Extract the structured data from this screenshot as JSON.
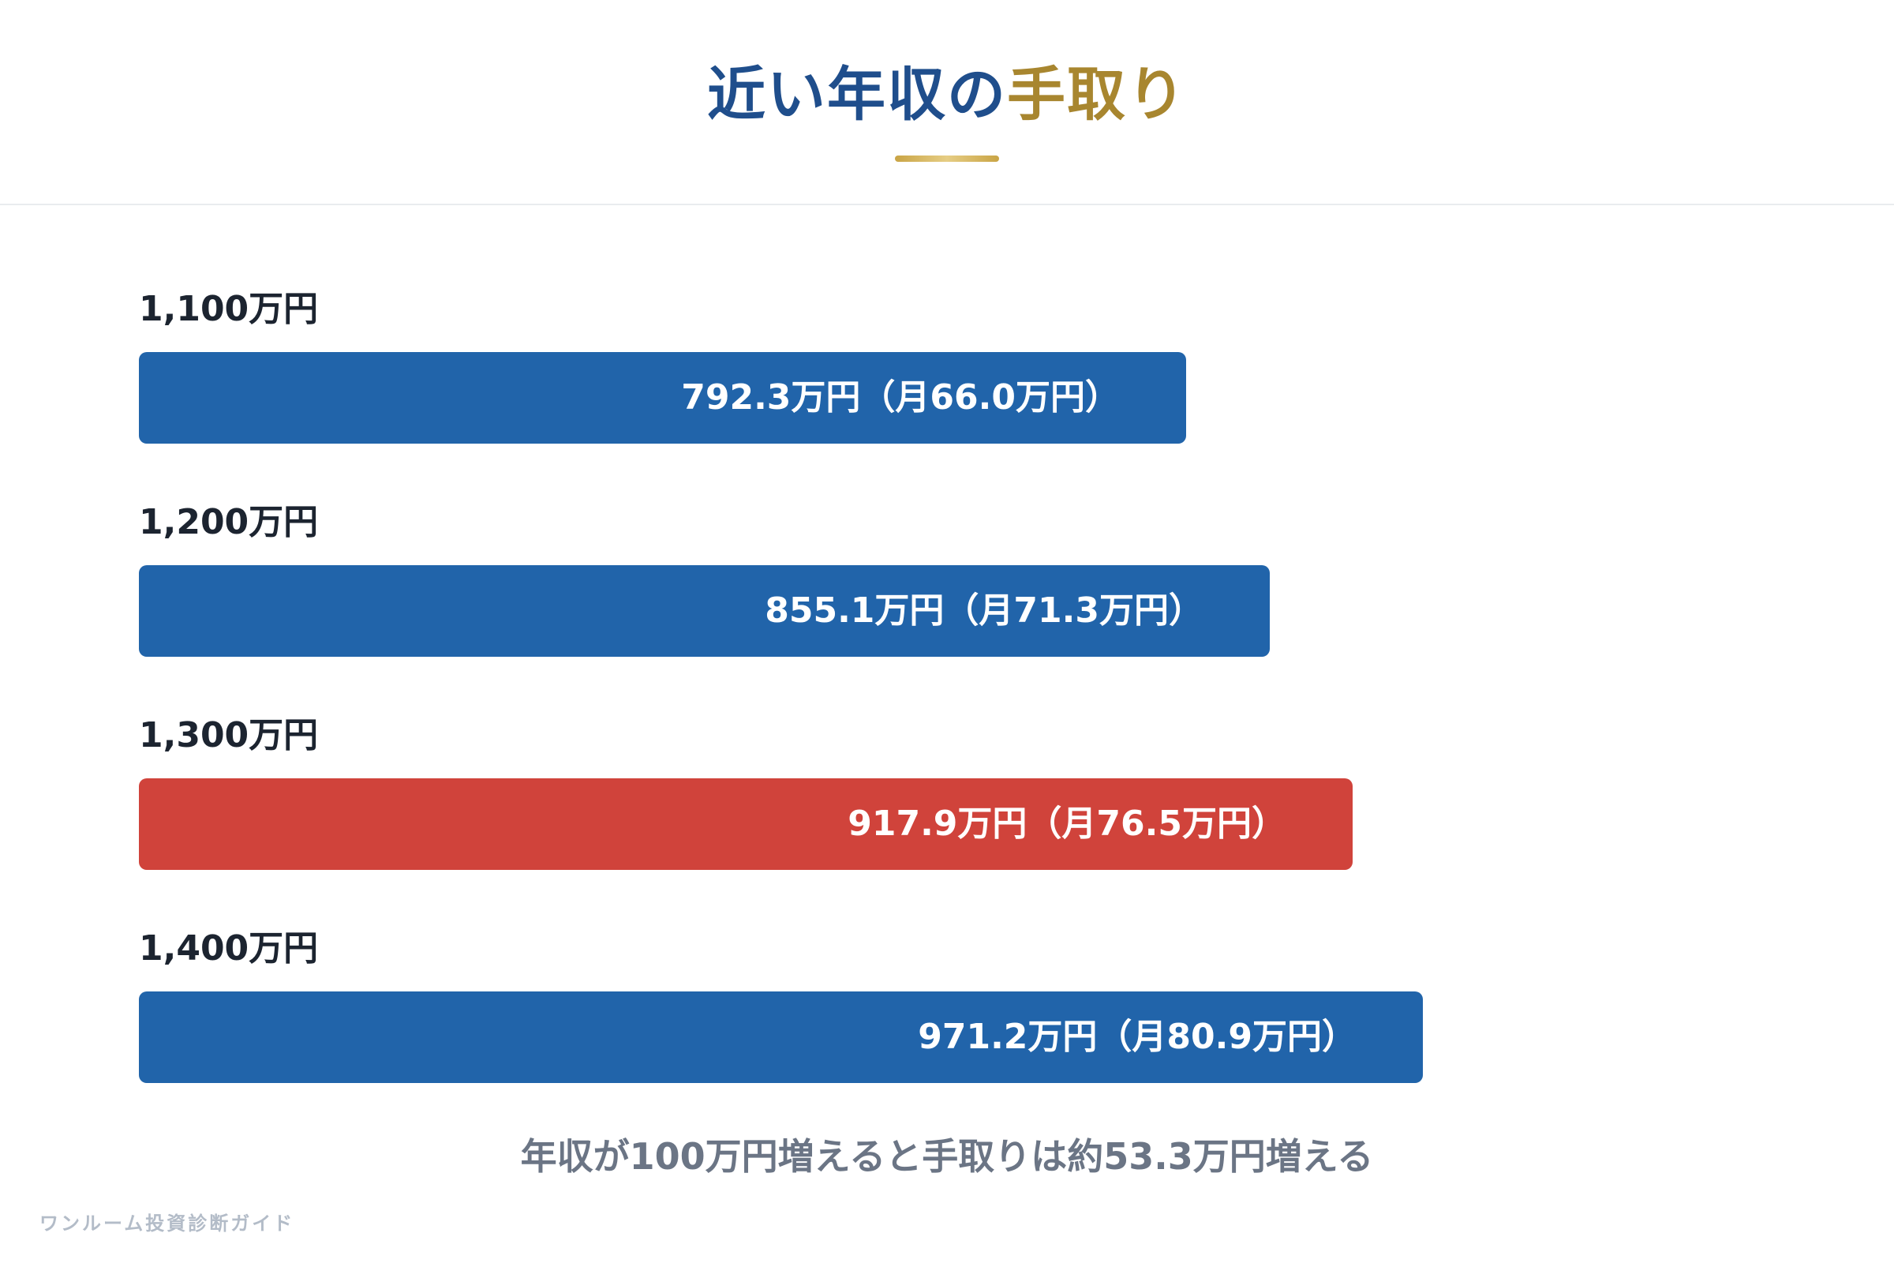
{
  "header": {
    "title_part1": "近い年収の",
    "title_part2": "手取り"
  },
  "colors": {
    "navy": "#1f4e8c",
    "gold": "#a8862f",
    "bar_default": "#2164aa",
    "bar_highlight": "#d0433b"
  },
  "chart_data": {
    "type": "bar",
    "orientation": "horizontal",
    "categories": [
      "1,100万円",
      "1,200万円",
      "1,300万円",
      "1,400万円"
    ],
    "values": [
      792.3,
      855.1,
      917.9,
      971.2
    ],
    "monthly_values": [
      66.0,
      71.3,
      76.5,
      80.9
    ],
    "value_labels": [
      "792.3万円（月66.0万円）",
      "855.1万円（月71.3万円）",
      "917.9万円（月76.5万円）",
      "971.2万円（月80.9万円）"
    ],
    "highlight_index": 2,
    "xlim": [
      0,
      1100
    ],
    "grid": false
  },
  "summary": "年収が100万円増えると手取りは約53.3万円増える",
  "watermark": "ワンルーム投資診断ガイド"
}
